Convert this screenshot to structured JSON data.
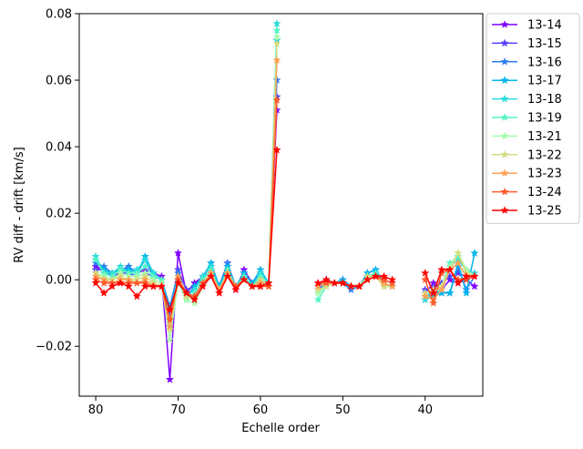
{
  "chart_data": {
    "type": "line",
    "title": "",
    "xlabel": "Echelle order",
    "ylabel": "RV diff - drift [km/s]",
    "xlim": [
      82,
      33
    ],
    "ylim": [
      -0.035,
      0.08
    ],
    "x_ticks": [
      80,
      70,
      60,
      50,
      40
    ],
    "x_tick_labels": [
      "80",
      "70",
      "60",
      "50",
      "40"
    ],
    "y_ticks": [
      -0.02,
      0.0,
      0.02,
      0.04,
      0.06,
      0.08
    ],
    "y_tick_labels": [
      "−0.02",
      "0.00",
      "0.02",
      "0.04",
      "0.06",
      "0.08"
    ],
    "grid": false,
    "legend_position": "outside-top-right",
    "marker": "star",
    "x": [
      80,
      79,
      78,
      77,
      76,
      75,
      74,
      73,
      72,
      71,
      70,
      69,
      68,
      67,
      66,
      65,
      64,
      63,
      62,
      61,
      60,
      59,
      58,
      null,
      53,
      52,
      51,
      50,
      49,
      48,
      47,
      46,
      45,
      44,
      null,
      40,
      39,
      38,
      37,
      36,
      35,
      34
    ],
    "series": [
      {
        "name": "13-14",
        "color": "#7f00ff",
        "values": [
          0.004,
          0.003,
          0.001,
          0.002,
          0.003,
          0.002,
          0.003,
          0.002,
          0.001,
          -0.03,
          0.008,
          -0.004,
          -0.001,
          0.001,
          0.004,
          -0.002,
          0.005,
          -0.003,
          0.003,
          -0.001,
          -0.002,
          -0.001,
          0.051,
          null,
          -0.002,
          0.0,
          -0.001,
          0.0,
          -0.002,
          -0.002,
          0.001,
          0.001,
          0.0,
          -0.001,
          null,
          -0.004,
          -0.001,
          -0.003,
          0.0,
          -0.001,
          0.0,
          -0.002
        ]
      },
      {
        "name": "13-15",
        "color": "#5641fd",
        "values": [
          0.003,
          0.003,
          0.001,
          0.002,
          0.002,
          0.001,
          0.002,
          0.001,
          0.0,
          -0.01,
          0.003,
          -0.003,
          -0.002,
          0.0,
          0.003,
          -0.002,
          0.004,
          -0.002,
          0.002,
          -0.001,
          -0.001,
          -0.001,
          0.055,
          null,
          -0.002,
          0.0,
          -0.001,
          -0.001,
          -0.002,
          -0.002,
          0.001,
          0.002,
          -0.001,
          -0.002,
          null,
          -0.003,
          -0.002,
          -0.001,
          0.001,
          0.002,
          0.001,
          0.001
        ]
      },
      {
        "name": "13-16",
        "color": "#2c7ef7",
        "values": [
          0.005,
          0.004,
          0.002,
          0.003,
          0.004,
          0.002,
          0.006,
          0.001,
          0.0,
          -0.008,
          0.002,
          -0.005,
          -0.002,
          0.0,
          0.005,
          -0.002,
          0.005,
          -0.002,
          0.002,
          -0.001,
          0.002,
          -0.001,
          0.06,
          null,
          -0.003,
          -0.001,
          -0.001,
          -0.001,
          -0.003,
          -0.002,
          0.002,
          0.003,
          -0.001,
          -0.002,
          null,
          -0.005,
          -0.004,
          -0.004,
          -0.004,
          0.004,
          -0.003,
          0.001
        ]
      },
      {
        "name": "13-17",
        "color": "#00b5eb",
        "values": [
          0.006,
          0.003,
          0.002,
          0.003,
          0.003,
          0.002,
          0.007,
          0.002,
          0.0,
          -0.009,
          0.001,
          -0.006,
          -0.002,
          0.001,
          0.005,
          -0.002,
          0.004,
          -0.002,
          0.002,
          -0.001,
          0.003,
          -0.001,
          0.072,
          null,
          -0.003,
          -0.002,
          -0.001,
          0.0,
          -0.002,
          -0.002,
          0.002,
          0.003,
          -0.001,
          -0.002,
          null,
          -0.006,
          -0.005,
          -0.004,
          -0.004,
          0.005,
          -0.004,
          0.008
        ]
      },
      {
        "name": "13-18",
        "color": "#2adddd",
        "values": [
          0.007,
          0.002,
          0.002,
          0.004,
          0.002,
          0.003,
          0.006,
          0.002,
          0.0,
          -0.012,
          0.001,
          -0.005,
          -0.003,
          0.001,
          0.004,
          -0.003,
          0.003,
          -0.002,
          0.001,
          -0.002,
          0.002,
          -0.001,
          0.077,
          null,
          -0.004,
          -0.002,
          -0.001,
          -0.001,
          -0.002,
          -0.002,
          0.001,
          0.002,
          -0.001,
          -0.002,
          null,
          -0.006,
          -0.004,
          -0.003,
          0.004,
          0.006,
          0.003,
          0.002
        ]
      },
      {
        "name": "13-19",
        "color": "#54f5c6",
        "values": [
          0.006,
          0.002,
          0.001,
          0.003,
          0.002,
          0.002,
          0.004,
          0.001,
          0.0,
          -0.015,
          0.0,
          -0.006,
          -0.004,
          0.0,
          0.003,
          -0.003,
          0.003,
          -0.002,
          0.001,
          -0.002,
          0.001,
          -0.001,
          0.075,
          null,
          -0.006,
          -0.002,
          -0.001,
          -0.001,
          -0.002,
          -0.002,
          0.001,
          0.002,
          -0.002,
          -0.002,
          null,
          -0.005,
          -0.003,
          -0.002,
          0.005,
          0.007,
          0.003,
          0.001
        ]
      },
      {
        "name": "13-21",
        "color": "#a6fcab",
        "values": [
          0.002,
          0.001,
          0.0,
          0.002,
          0.001,
          0.001,
          0.002,
          0.0,
          -0.001,
          -0.018,
          -0.001,
          -0.006,
          -0.007,
          -0.002,
          0.002,
          -0.003,
          0.002,
          -0.002,
          0.0,
          -0.002,
          0.0,
          -0.001,
          0.073,
          null,
          -0.004,
          -0.002,
          -0.001,
          -0.001,
          -0.002,
          -0.002,
          0.001,
          0.001,
          -0.002,
          -0.002,
          null,
          -0.004,
          -0.003,
          -0.002,
          0.004,
          0.008,
          0.003,
          0.001
        ]
      },
      {
        "name": "13-22",
        "color": "#d4dd80",
        "values": [
          0.002,
          0.0,
          0.0,
          0.001,
          0.0,
          0.0,
          0.001,
          -0.001,
          -0.002,
          -0.015,
          0.0,
          -0.005,
          -0.006,
          -0.002,
          0.002,
          -0.003,
          0.002,
          -0.002,
          0.0,
          -0.002,
          0.0,
          -0.002,
          0.071,
          null,
          -0.003,
          -0.002,
          -0.001,
          -0.001,
          -0.002,
          -0.002,
          0.001,
          0.001,
          -0.002,
          -0.002,
          null,
          -0.004,
          -0.003,
          -0.002,
          0.003,
          0.008,
          0.002,
          0.001
        ]
      },
      {
        "name": "13-23",
        "color": "#ffa256",
        "values": [
          0.001,
          0.0,
          -0.001,
          0.0,
          0.0,
          -0.001,
          0.0,
          -0.002,
          -0.002,
          -0.014,
          0.001,
          -0.004,
          -0.005,
          -0.001,
          0.002,
          -0.003,
          0.002,
          -0.002,
          0.0,
          -0.002,
          -0.001,
          -0.002,
          0.066,
          null,
          -0.002,
          -0.001,
          -0.001,
          -0.001,
          -0.002,
          -0.002,
          0.0,
          0.001,
          -0.001,
          -0.002,
          null,
          -0.005,
          -0.006,
          -0.003,
          0.003,
          0.005,
          0.001,
          0.001
        ]
      },
      {
        "name": "13-24",
        "color": "#ff5a2c",
        "values": [
          0.0,
          -0.001,
          -0.001,
          -0.001,
          -0.001,
          -0.001,
          -0.001,
          -0.002,
          -0.002,
          -0.012,
          0.0,
          -0.004,
          -0.005,
          -0.001,
          0.001,
          -0.004,
          0.001,
          -0.002,
          0.0,
          -0.002,
          -0.002,
          -0.002,
          0.054,
          null,
          -0.001,
          -0.001,
          -0.001,
          -0.001,
          -0.002,
          -0.002,
          0.0,
          0.001,
          0.0,
          -0.001,
          null,
          0.0,
          -0.007,
          0.002,
          0.003,
          0.0,
          0.0,
          0.001
        ]
      },
      {
        "name": "13-25",
        "color": "#ff0000",
        "values": [
          -0.001,
          -0.004,
          -0.002,
          -0.001,
          -0.002,
          -0.005,
          -0.002,
          -0.002,
          -0.002,
          -0.009,
          -0.001,
          -0.004,
          -0.006,
          -0.002,
          0.001,
          -0.004,
          0.001,
          -0.003,
          0.0,
          -0.002,
          -0.002,
          -0.001,
          0.039,
          null,
          -0.001,
          0.0,
          -0.001,
          -0.001,
          -0.002,
          -0.002,
          0.0,
          0.001,
          0.001,
          0.0,
          null,
          0.002,
          -0.004,
          0.003,
          0.003,
          -0.001,
          0.001,
          0.001
        ]
      }
    ]
  }
}
